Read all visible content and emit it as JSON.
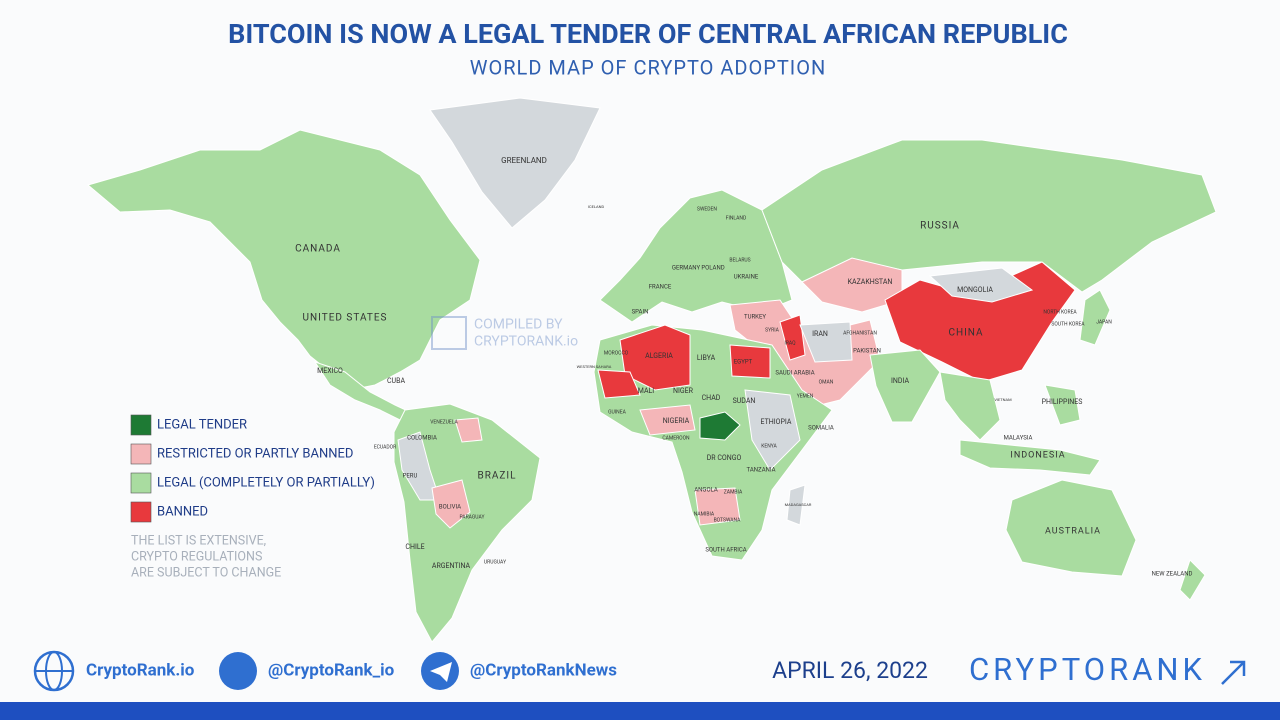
{
  "header": {
    "title": "BITCOIN IS NOW A LEGAL TENDER OF CENTRAL AFRICAN REPUBLIC",
    "subtitle": "WORLD MAP OF CRYPTO ADOPTION"
  },
  "watermark": [
    "COMPILED BY",
    "CRYPTORANK.io"
  ],
  "legend": {
    "items": [
      {
        "label": "LEGAL TENDER",
        "color": "#1e7a34"
      },
      {
        "label": "RESTRICTED OR PARTLY BANNED",
        "color": "#f4b6b8"
      },
      {
        "label": "LEGAL (COMPLETELY OR PARTIALLY)",
        "color": "#a9dca0"
      },
      {
        "label": "BANNED",
        "color": "#e8393d"
      }
    ],
    "note": [
      "THE LIST IS EXTENSIVE,",
      "CRYPTO REGULATIONS",
      "ARE SUBJECT TO CHANGE"
    ]
  },
  "map": {
    "labels": [
      "GREENLAND",
      "CANADA",
      "UNITED STATES",
      "MEXICO",
      "CUBA",
      "COLOMBIA",
      "VENEZUELA",
      "ECUADOR",
      "PERU",
      "BRAZIL",
      "BOLIVIA",
      "PARAGUAY",
      "CHILE",
      "ARGENTINA",
      "URUGUAY",
      "ICELAND",
      "SWEDEN",
      "FINLAND",
      "BELARUS",
      "POLAND",
      "GERMANY",
      "UKRAINE",
      "FRANCE",
      "SPAIN",
      "TURKEY",
      "SYRIA",
      "IRAQ",
      "IRAN",
      "AFGHANISTAN",
      "PAKISTAN",
      "SAUDI ARABIA",
      "OMAN",
      "YEMEN",
      "RUSSIA",
      "KAZAKHSTAN",
      "MONGOLIA",
      "CHINA",
      "INDIA",
      "JAPAN",
      "NORTH KOREA",
      "SOUTH KOREA",
      "VIETNAM",
      "PHILIPPINES",
      "MALAYSIA",
      "INDONESIA",
      "AUSTRALIA",
      "NEW ZEALAND",
      "ALGERIA",
      "LIBYA",
      "EGYPT",
      "MOROCCO",
      "WESTERN SAHARA",
      "MALI",
      "NIGER",
      "CHAD",
      "SUDAN",
      "GUINEA",
      "NIGERIA",
      "CAMEROON",
      "ETHIOPIA",
      "SOMALIA",
      "DR CONGO",
      "KENYA",
      "TANZANIA",
      "ANGOLA",
      "ZAMBIA",
      "NAMIBIA",
      "BOTSWANA",
      "SOUTH AFRICA",
      "MADAGASCAR"
    ]
  },
  "footer": {
    "links": [
      "CryptoRank.io",
      "@CryptoRank_io",
      "@CryptoRankNews"
    ],
    "date": "APRIL 26, 2022",
    "brand": "CRYPTORANK"
  }
}
